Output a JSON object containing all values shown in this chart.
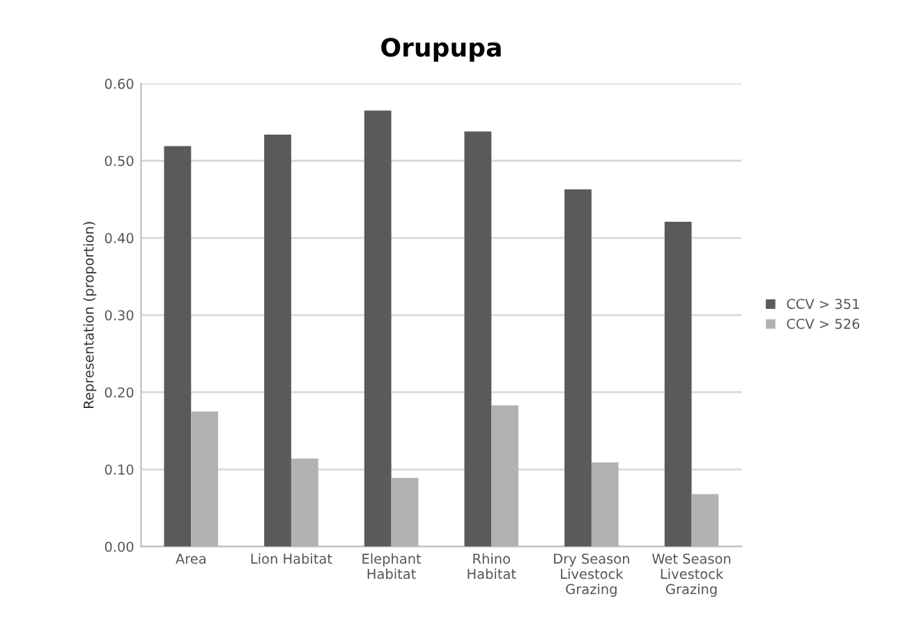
{
  "chart_data": {
    "type": "bar",
    "title": "Orupupa",
    "ylabel": "Representation (proportion)",
    "categories": [
      "Area",
      "Lion Habitat",
      "Elephant Habitat",
      "Rhino Habitat",
      "Dry Season Livestock Grazing",
      "Wet Season Livestock Grazing"
    ],
    "series": [
      {
        "name": "CCV > 351",
        "color": "#5a5a5a",
        "values": [
          0.519,
          0.534,
          0.565,
          0.538,
          0.463,
          0.421
        ]
      },
      {
        "name": "CCV > 526",
        "color": "#b2b2b2",
        "values": [
          0.175,
          0.114,
          0.089,
          0.183,
          0.109,
          0.068
        ]
      }
    ],
    "ylim": [
      0,
      0.6
    ],
    "yticks": [
      {
        "value": 0,
        "label": "0.00"
      },
      {
        "value": 0.1,
        "label": "0.10"
      },
      {
        "value": 0.2,
        "label": "0.20"
      },
      {
        "value": 0.3,
        "label": "0.30"
      },
      {
        "value": 0.4,
        "label": "0.40"
      },
      {
        "value": 0.5,
        "label": "0.50"
      },
      {
        "value": 0.6,
        "label": "0.60"
      }
    ],
    "grid": "y",
    "legend": "right"
  }
}
